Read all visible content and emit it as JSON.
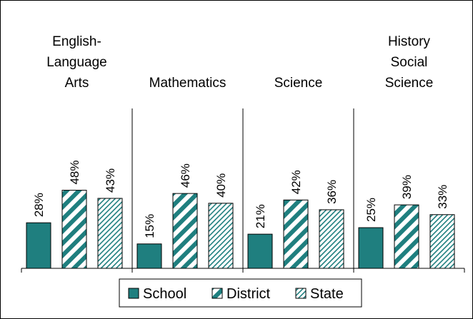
{
  "chart_data": {
    "type": "bar",
    "categories": [
      [
        "English-",
        "Language",
        "Arts"
      ],
      [
        "Mathematics"
      ],
      [
        "Science"
      ],
      [
        "History",
        "Social",
        "Science"
      ]
    ],
    "series": [
      {
        "name": "School",
        "values": [
          28,
          15,
          21,
          25
        ],
        "color": "#1f7f7f",
        "pattern": "solid"
      },
      {
        "name": "District",
        "values": [
          48,
          46,
          42,
          39
        ],
        "color": "#1f7f7f",
        "pattern": "wide-diagonal"
      },
      {
        "name": "State",
        "values": [
          43,
          40,
          36,
          33
        ],
        "color": "#1f7f7f",
        "pattern": "light-diagonal"
      }
    ],
    "value_suffix": "%",
    "ylim": [
      0,
      100
    ],
    "legend_position": "bottom",
    "grid": false
  }
}
